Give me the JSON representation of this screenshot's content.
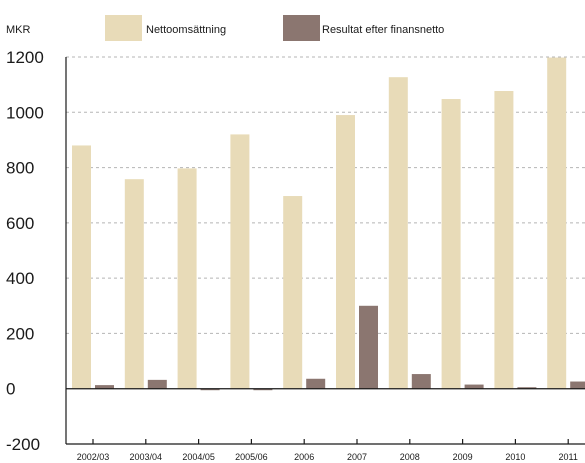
{
  "chart_data": {
    "type": "bar",
    "unit_label": "MKR",
    "categories": [
      "2002/03",
      "2003/04",
      "2004/05",
      "2005/06",
      "2006",
      "2007",
      "2008",
      "2009",
      "2010",
      "2011"
    ],
    "series": [
      {
        "name": "Nettoomsättning",
        "color": "#e8dbb8",
        "values": [
          880,
          758,
          797,
          920,
          697,
          990,
          1127,
          1048,
          1077,
          1198
        ]
      },
      {
        "name": "Resultat efter finansnetto",
        "color": "#8b7670",
        "values": [
          13,
          32,
          -5,
          -5,
          36,
          300,
          53,
          15,
          2,
          26
        ]
      }
    ],
    "ylim": [
      -200,
      1200
    ],
    "yticks": [
      1200,
      1000,
      800,
      600,
      400,
      200,
      0,
      -200
    ],
    "grid": true,
    "legend_position": "top"
  }
}
